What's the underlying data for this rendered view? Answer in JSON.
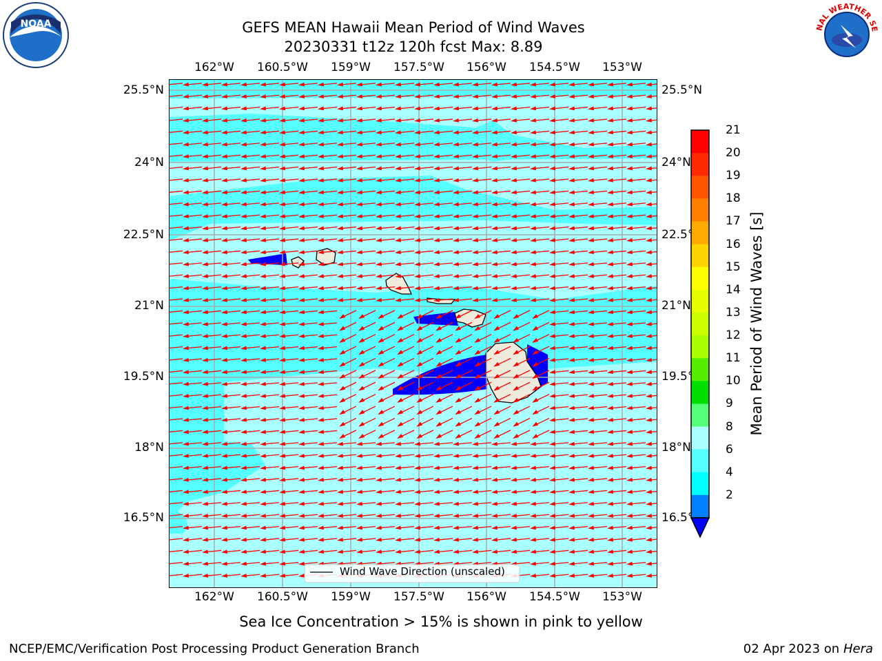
{
  "title_line1": "GEFS MEAN Hawaii Mean Period of Wind Waves",
  "title_line2": "20230331 t12z 120h fcst   Max: 8.89",
  "lon_ticks": [
    "162°W",
    "160.5°W",
    "159°W",
    "157.5°W",
    "156°W",
    "154.5°W",
    "153°W"
  ],
  "lat_ticks": [
    "25.5°N",
    "24°N",
    "22.5°N",
    "21°N",
    "19.5°N",
    "18°N",
    "16.5°N"
  ],
  "legend_label": "Wind Wave Direction (unscaled)",
  "colorbar": {
    "label": "Mean Period of Wind Waves [s]",
    "ticks": [
      "21",
      "20",
      "19",
      "18",
      "17",
      "16",
      "15",
      "14",
      "13",
      "12",
      "11",
      "10",
      "9",
      "8",
      "6",
      "4",
      "2"
    ],
    "colors": [
      "#ff0000",
      "#ff2a00",
      "#ff5500",
      "#ff7f00",
      "#ffaa00",
      "#ffd400",
      "#ffff00",
      "#e5ff00",
      "#ccff00",
      "#aaff00",
      "#55ee00",
      "#00dd00",
      "#55ff77",
      "#aaffff",
      "#55ffff",
      "#00ffff",
      "#0080ff"
    ],
    "under_color": "#0000ff"
  },
  "field_colors": {
    "ocean_base": "#55ffff",
    "ocean_light": "#aaffff",
    "short_period": "#0000ff",
    "land": "#efebdc",
    "arrow": "#ff0000"
  },
  "sea_ice_note": "Sea Ice Concentration > 15% is shown in pink to yellow",
  "footer_left": "NCEP/EMC/Verification Post Processing Product Generation Branch",
  "footer_date": "02 Apr 2023 on",
  "footer_host": "Hera",
  "logo_left_text": "NOAA",
  "logo_right_text": "NATIONAL WEATHER SERVICE"
}
